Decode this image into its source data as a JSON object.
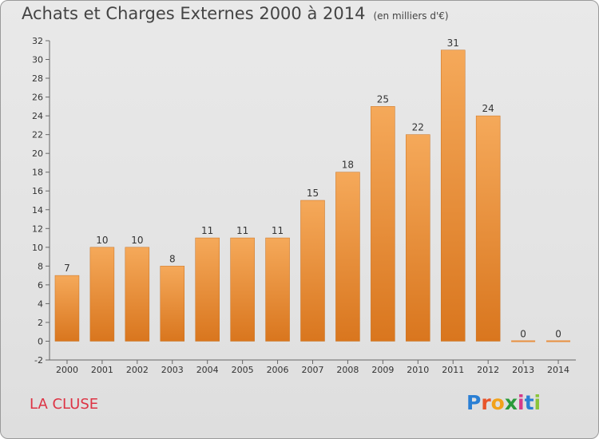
{
  "title": "Achats et Charges Externes 2000 à 2014",
  "unit": "(en milliers d'€)",
  "commune": "LA CLUSE",
  "logo": {
    "text": "Proxiti",
    "colors": [
      "#2a7fd4",
      "#e8542a",
      "#f2a21a",
      "#2a9a3a",
      "#d43a8a",
      "#2a7fd4",
      "#8ac43a"
    ]
  },
  "chart_data": {
    "type": "bar",
    "categories": [
      "2000",
      "2001",
      "2002",
      "2003",
      "2004",
      "2005",
      "2006",
      "2007",
      "2008",
      "2009",
      "2010",
      "2011",
      "2012",
      "2013",
      "2014"
    ],
    "values": [
      7,
      10,
      10,
      8,
      11,
      11,
      11,
      15,
      18,
      25,
      22,
      31,
      24,
      0,
      0
    ],
    "ylim": [
      -2,
      32
    ],
    "yticks": [
      -2,
      0,
      2,
      4,
      6,
      8,
      10,
      12,
      14,
      16,
      18,
      20,
      22,
      24,
      26,
      28,
      30,
      32
    ],
    "grid": false,
    "bar_color": "#f0a050"
  }
}
